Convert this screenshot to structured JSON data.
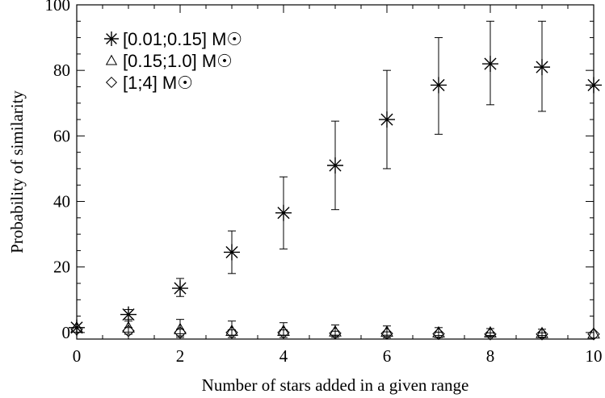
{
  "chart_data": {
    "type": "scatter",
    "title": "",
    "xlabel": "Number of stars added in a given range",
    "ylabel": "Probability of similarity",
    "xlim": [
      0,
      10
    ],
    "ylim": [
      -2,
      100
    ],
    "x_ticks": [
      "0",
      "2",
      "4",
      "6",
      "8",
      "10"
    ],
    "y_ticks": [
      "0",
      "20",
      "40",
      "60",
      "80",
      "100"
    ],
    "grid": false,
    "legend_position": "top-left",
    "series": [
      {
        "name": "[0.01;0.15] M☉",
        "marker": "asterisk",
        "x": [
          0,
          1,
          2,
          3,
          4,
          5,
          6,
          7,
          8,
          9,
          10
        ],
        "y": [
          1.5,
          5.5,
          13.5,
          24.5,
          36.5,
          51,
          65,
          75.5,
          82,
          81,
          75.5
        ],
        "err_low": [
          0,
          1.5,
          2.5,
          6.5,
          11,
          13.5,
          15,
          15,
          12.5,
          13.5,
          0
        ],
        "err_high": [
          0,
          1.5,
          3,
          6.5,
          11,
          13.5,
          15,
          14.5,
          13,
          14,
          0
        ]
      },
      {
        "name": "[0.15;1.0] M☉",
        "marker": "triangle",
        "x": [
          0,
          1,
          2,
          3,
          4,
          5,
          6,
          7,
          8,
          9,
          10
        ],
        "y": [
          1.5,
          1.5,
          1,
          0.5,
          0.5,
          0.3,
          0.2,
          0,
          0,
          -0.2,
          -0.3
        ],
        "err_low": [
          0,
          2,
          2.5,
          2,
          2,
          1.8,
          1.8,
          1.5,
          1.2,
          1.2,
          0
        ],
        "err_high": [
          0,
          2,
          3,
          3,
          2.5,
          2,
          1.8,
          1.5,
          1.2,
          1.2,
          0
        ]
      },
      {
        "name": "[1;4] M☉",
        "marker": "diamond",
        "x": [
          0,
          1,
          2,
          3,
          4,
          5,
          6,
          7,
          8,
          9,
          10
        ],
        "y": [
          1,
          0.5,
          0,
          0,
          0,
          -0.2,
          -0.3,
          -0.4,
          -0.5,
          -0.5,
          -0.5
        ],
        "err_low": [
          0,
          1,
          1,
          0.8,
          0.8,
          0.6,
          0.5,
          0.5,
          0.4,
          0.4,
          0
        ],
        "err_high": [
          0,
          1,
          1,
          0.8,
          0.8,
          0.6,
          0.5,
          0.5,
          0.4,
          0.4,
          0
        ]
      }
    ]
  }
}
